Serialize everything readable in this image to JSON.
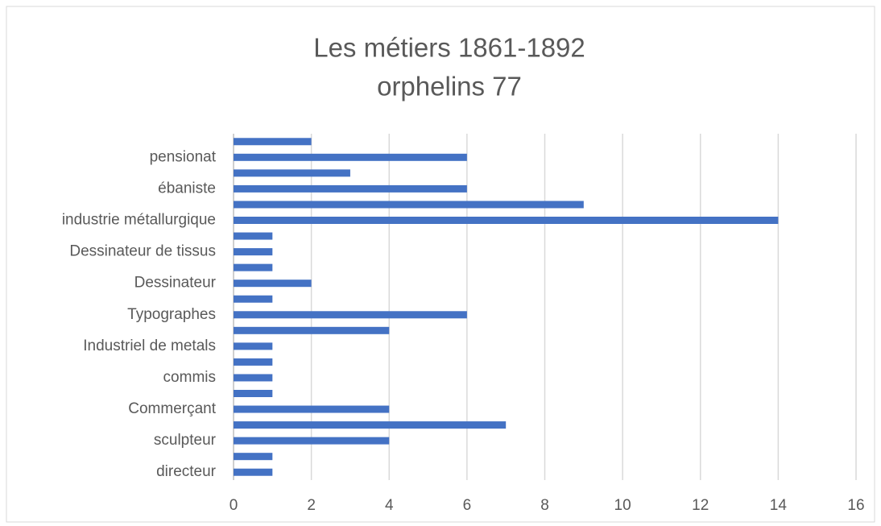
{
  "chart_data": {
    "type": "barh",
    "title": [
      "Les métiers 1861-1892",
      "orphelins 77"
    ],
    "categories": [
      "directeur",
      null,
      "sculpteur",
      null,
      "Commerçant",
      null,
      "commis",
      null,
      "Industriel de metals",
      null,
      "Typographes",
      null,
      "Dessinateur",
      null,
      "Dessinateur de tissus",
      null,
      "industrie métallurgique",
      null,
      "ébaniste",
      null,
      "pensionat",
      null
    ],
    "values": [
      1,
      1,
      4,
      7,
      4,
      1,
      1,
      1,
      1,
      4,
      6,
      1,
      2,
      1,
      1,
      1,
      14,
      9,
      6,
      3,
      6,
      2
    ],
    "color": "#4472c4",
    "xlim": [
      0,
      16
    ],
    "xticks": [
      0,
      2,
      4,
      6,
      8,
      10,
      12,
      14,
      16
    ],
    "grid": true
  }
}
